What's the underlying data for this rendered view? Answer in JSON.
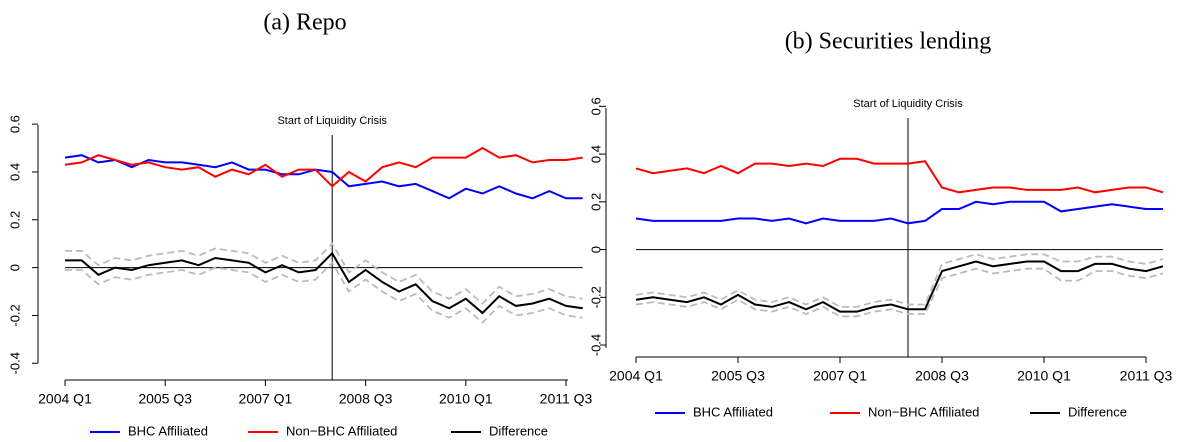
{
  "chart_data": [
    {
      "type": "line",
      "title": "(a) Repo",
      "categories": [
        "2004 Q1",
        null,
        null,
        null,
        null,
        null,
        "2005 Q3",
        null,
        null,
        null,
        null,
        null,
        "2007 Q1",
        null,
        null,
        null,
        null,
        null,
        "2008 Q3",
        null,
        null,
        null,
        null,
        null,
        "2010 Q1",
        null,
        null,
        null,
        null,
        null,
        "2011 Q3",
        null
      ],
      "series": [
        {
          "name": "BHC Affiliated",
          "color": "#0000ff",
          "values": [
            0.46,
            0.47,
            0.44,
            0.45,
            0.42,
            0.45,
            0.44,
            0.44,
            0.43,
            0.42,
            0.44,
            0.41,
            0.41,
            0.39,
            0.39,
            0.41,
            0.4,
            0.34,
            0.35,
            0.36,
            0.34,
            0.35,
            0.32,
            0.29,
            0.33,
            0.31,
            0.34,
            0.31,
            0.29,
            0.32,
            0.29,
            0.29
          ]
        },
        {
          "name": "Non−BHC Affiliated",
          "color": "#ff0000",
          "values": [
            0.43,
            0.44,
            0.47,
            0.45,
            0.43,
            0.44,
            0.42,
            0.41,
            0.42,
            0.38,
            0.41,
            0.39,
            0.43,
            0.38,
            0.41,
            0.41,
            0.34,
            0.4,
            0.36,
            0.42,
            0.44,
            0.42,
            0.46,
            0.46,
            0.46,
            0.5,
            0.46,
            0.47,
            0.44,
            0.45,
            0.45,
            0.46
          ]
        },
        {
          "name": "Difference",
          "color": "#000000",
          "values": [
            0.03,
            0.03,
            -0.03,
            0.0,
            -0.01,
            0.01,
            0.02,
            0.03,
            0.01,
            0.04,
            0.03,
            0.02,
            -0.02,
            0.01,
            -0.02,
            -0.01,
            0.06,
            -0.06,
            -0.01,
            -0.06,
            -0.1,
            -0.07,
            -0.14,
            -0.17,
            -0.13,
            -0.19,
            -0.12,
            -0.16,
            -0.15,
            -0.13,
            -0.16,
            -0.17
          ]
        },
        {
          "color": "#bbbbbb",
          "dash": true,
          "values": [
            0.07,
            0.07,
            0.01,
            0.04,
            0.03,
            0.05,
            0.06,
            0.07,
            0.05,
            0.08,
            0.07,
            0.06,
            0.02,
            0.05,
            0.02,
            0.03,
            0.1,
            -0.02,
            0.03,
            -0.02,
            -0.06,
            -0.03,
            -0.1,
            -0.13,
            -0.09,
            -0.15,
            -0.08,
            -0.12,
            -0.11,
            -0.09,
            -0.12,
            -0.13
          ]
        },
        {
          "color": "#bbbbbb",
          "dash": true,
          "values": [
            -0.01,
            -0.01,
            -0.07,
            -0.04,
            -0.05,
            -0.03,
            -0.02,
            -0.01,
            -0.03,
            0.0,
            -0.01,
            -0.02,
            -0.06,
            -0.03,
            -0.06,
            -0.05,
            0.02,
            -0.1,
            -0.05,
            -0.1,
            -0.14,
            -0.11,
            -0.18,
            -0.21,
            -0.17,
            -0.23,
            -0.16,
            -0.2,
            -0.19,
            -0.17,
            -0.2,
            -0.21
          ]
        }
      ],
      "ylim": [
        -0.47,
        0.68
      ],
      "yticks": [
        -0.4,
        -0.2,
        0,
        0.2,
        0.4,
        0.6
      ],
      "hline": 0,
      "vline": {
        "label": "Start of Liquidity Crisis",
        "at": 16
      }
    },
    {
      "type": "line",
      "title": "(b) Securities lending",
      "categories": [
        "2004 Q1",
        null,
        null,
        null,
        null,
        null,
        "2005 Q3",
        null,
        null,
        null,
        null,
        null,
        "2007 Q1",
        null,
        null,
        null,
        null,
        null,
        "2008 Q3",
        null,
        null,
        null,
        null,
        null,
        "2010 Q1",
        null,
        null,
        null,
        null,
        null,
        "2011 Q3",
        null
      ],
      "series": [
        {
          "name": "BHC Affiliated",
          "color": "#0000ff",
          "values": [
            0.13,
            0.12,
            0.12,
            0.12,
            0.12,
            0.12,
            0.13,
            0.13,
            0.12,
            0.13,
            0.11,
            0.13,
            0.12,
            0.12,
            0.12,
            0.13,
            0.11,
            0.12,
            0.17,
            0.17,
            0.2,
            0.19,
            0.2,
            0.2,
            0.2,
            0.16,
            0.17,
            0.18,
            0.19,
            0.18,
            0.17,
            0.17
          ]
        },
        {
          "name": "Non−BHC Affiliated",
          "color": "#ff0000",
          "values": [
            0.34,
            0.32,
            0.33,
            0.34,
            0.32,
            0.35,
            0.32,
            0.36,
            0.36,
            0.35,
            0.36,
            0.35,
            0.38,
            0.38,
            0.36,
            0.36,
            0.36,
            0.37,
            0.26,
            0.24,
            0.25,
            0.26,
            0.26,
            0.25,
            0.25,
            0.25,
            0.26,
            0.24,
            0.25,
            0.26,
            0.26,
            0.24
          ]
        },
        {
          "name": "Difference",
          "color": "#000000",
          "values": [
            -0.21,
            -0.2,
            -0.21,
            -0.22,
            -0.2,
            -0.23,
            -0.19,
            -0.23,
            -0.24,
            -0.22,
            -0.25,
            -0.22,
            -0.26,
            -0.26,
            -0.24,
            -0.23,
            -0.25,
            -0.25,
            -0.09,
            -0.07,
            -0.05,
            -0.07,
            -0.06,
            -0.05,
            -0.05,
            -0.09,
            -0.09,
            -0.06,
            -0.06,
            -0.08,
            -0.09,
            -0.07
          ]
        },
        {
          "color": "#bbbbbb",
          "dash": true,
          "values": [
            -0.19,
            -0.18,
            -0.19,
            -0.2,
            -0.18,
            -0.21,
            -0.17,
            -0.21,
            -0.22,
            -0.2,
            -0.23,
            -0.2,
            -0.24,
            -0.24,
            -0.22,
            -0.21,
            -0.23,
            -0.23,
            -0.06,
            -0.04,
            -0.02,
            -0.04,
            -0.03,
            -0.02,
            -0.02,
            -0.05,
            -0.05,
            -0.03,
            -0.03,
            -0.05,
            -0.06,
            -0.04
          ]
        },
        {
          "color": "#bbbbbb",
          "dash": true,
          "values": [
            -0.23,
            -0.22,
            -0.23,
            -0.24,
            -0.22,
            -0.25,
            -0.21,
            -0.25,
            -0.26,
            -0.24,
            -0.27,
            -0.24,
            -0.28,
            -0.28,
            -0.26,
            -0.25,
            -0.27,
            -0.27,
            -0.12,
            -0.1,
            -0.08,
            -0.1,
            -0.09,
            -0.08,
            -0.08,
            -0.13,
            -0.13,
            -0.09,
            -0.09,
            -0.11,
            -0.12,
            -0.1
          ]
        }
      ],
      "ylim": [
        -0.45,
        0.66
      ],
      "yticks": [
        -0.4,
        -0.2,
        0,
        0.2,
        0.4,
        0.6
      ],
      "hline": 0,
      "vline": {
        "label": "Start of Liquidity Crisis",
        "at": 16
      }
    }
  ]
}
